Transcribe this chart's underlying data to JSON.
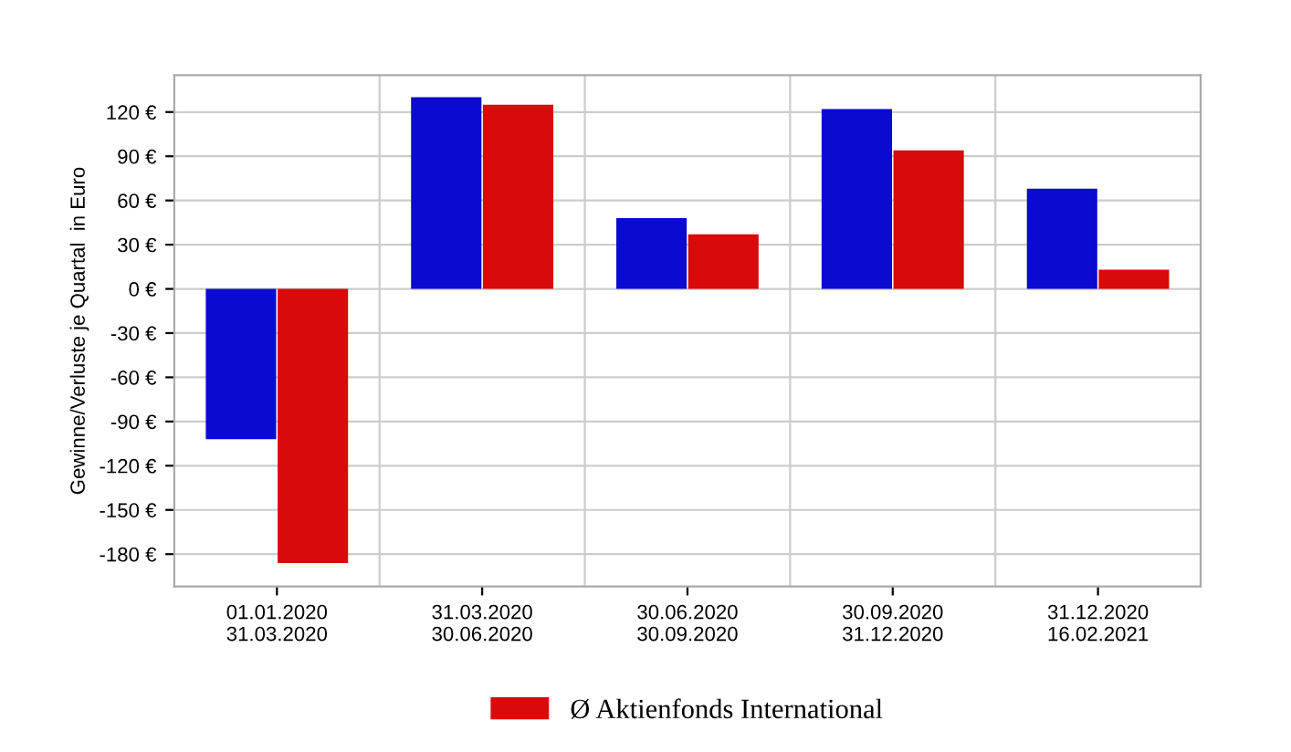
{
  "chart_data": {
    "type": "bar",
    "ylabel": "Gewinne/Verluste je Quartal  in Euro",
    "categories": [
      "01.01.2020\n31.03.2020",
      "31.03.2020\n30.06.2020",
      "30.06.2020\n30.09.2020",
      "30.09.2020\n31.12.2020",
      "31.12.2020\n16.02.2021"
    ],
    "series": [
      {
        "color": "#0a0ad0",
        "values": [
          -102,
          130,
          48,
          122,
          68
        ]
      },
      {
        "name": "Ø Aktienfonds International",
        "color": "#d80a0a",
        "values": [
          -186,
          125,
          37,
          94,
          13
        ]
      }
    ],
    "ylim": [
      -202,
      145
    ],
    "yticks": [
      {
        "value": -180,
        "label": "-180 €"
      },
      {
        "value": -150,
        "label": "-150 €"
      },
      {
        "value": -120,
        "label": "-120 €"
      },
      {
        "value": -90,
        "label": "-90 €"
      },
      {
        "value": -60,
        "label": "-60 €"
      },
      {
        "value": -30,
        "label": "-30 €"
      },
      {
        "value": 0,
        "label": "0 €"
      },
      {
        "value": 30,
        "label": "30 €"
      },
      {
        "value": 60,
        "label": "60 €"
      },
      {
        "value": 90,
        "label": "90 €"
      },
      {
        "value": 120,
        "label": "120 €"
      }
    ],
    "grid": true,
    "legend": "bottom"
  }
}
